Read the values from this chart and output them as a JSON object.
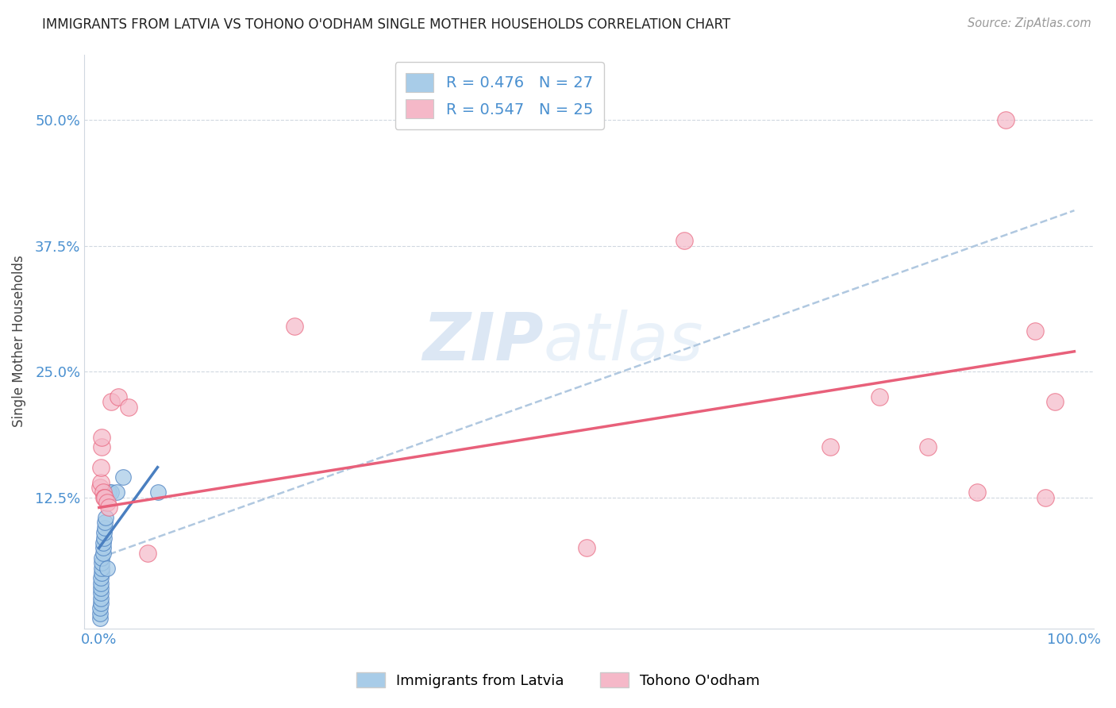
{
  "title": "IMMIGRANTS FROM LATVIA VS TOHONO O'ODHAM SINGLE MOTHER HOUSEHOLDS CORRELATION CHART",
  "source": "Source: ZipAtlas.com",
  "xlabel_bottom": [
    "Immigrants from Latvia",
    "Tohono O'odham"
  ],
  "ylabel": "Single Mother Households",
  "y_tick_labels": [
    "12.5%",
    "25.0%",
    "37.5%",
    "50.0%"
  ],
  "y_ticks": [
    0.125,
    0.25,
    0.375,
    0.5
  ],
  "blue_R": 0.476,
  "blue_N": 27,
  "pink_R": 0.547,
  "pink_N": 25,
  "blue_color": "#a8cce8",
  "pink_color": "#f5b8c8",
  "blue_line_color": "#4a7fc0",
  "pink_line_color": "#e8607a",
  "dashed_line_color": "#b0c8e0",
  "watermark_zip": "ZIP",
  "watermark_atlas": "atlas",
  "blue_scatter_x": [
    0.001,
    0.001,
    0.001,
    0.002,
    0.002,
    0.002,
    0.002,
    0.002,
    0.002,
    0.003,
    0.003,
    0.003,
    0.003,
    0.004,
    0.004,
    0.004,
    0.005,
    0.005,
    0.006,
    0.006,
    0.007,
    0.008,
    0.01,
    0.012,
    0.018,
    0.025,
    0.06
  ],
  "blue_scatter_y": [
    0.005,
    0.01,
    0.015,
    0.02,
    0.025,
    0.03,
    0.035,
    0.04,
    0.045,
    0.05,
    0.055,
    0.06,
    0.065,
    0.07,
    0.075,
    0.08,
    0.085,
    0.09,
    0.095,
    0.1,
    0.105,
    0.055,
    0.13,
    0.13,
    0.13,
    0.145,
    0.13
  ],
  "pink_scatter_x": [
    0.001,
    0.002,
    0.002,
    0.003,
    0.003,
    0.004,
    0.005,
    0.006,
    0.008,
    0.01,
    0.012,
    0.02,
    0.03,
    0.05,
    0.2,
    0.5,
    0.6,
    0.75,
    0.8,
    0.85,
    0.9,
    0.93,
    0.96,
    0.97,
    0.98
  ],
  "pink_scatter_y": [
    0.135,
    0.14,
    0.155,
    0.175,
    0.185,
    0.13,
    0.125,
    0.125,
    0.12,
    0.115,
    0.22,
    0.225,
    0.215,
    0.07,
    0.295,
    0.075,
    0.38,
    0.175,
    0.225,
    0.175,
    0.13,
    0.5,
    0.29,
    0.125,
    0.22
  ],
  "blue_line_x0": 0.0,
  "blue_line_y0": 0.075,
  "blue_line_x1": 0.06,
  "blue_line_y1": 0.155,
  "pink_line_x0": 0.0,
  "pink_line_y0": 0.115,
  "pink_line_x1": 1.0,
  "pink_line_y1": 0.27,
  "dash_line_x0": 0.0,
  "dash_line_y0": 0.065,
  "dash_line_x1": 1.0,
  "dash_line_y1": 0.41,
  "xlim": [
    -0.015,
    1.02
  ],
  "ylim": [
    -0.005,
    0.565
  ]
}
